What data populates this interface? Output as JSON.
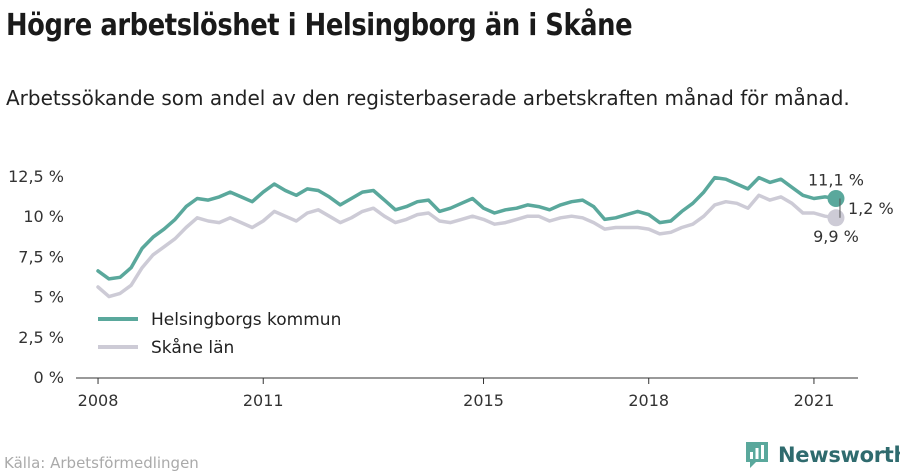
{
  "title": "Högre arbetslöshet i Helsingborg än i Skåne",
  "subtitle": "Arbetssökande som andel av den registerbaserade arbetskraften månad för månad.",
  "source": "Källa: Arbetsförmedlingen",
  "brand": {
    "name": "Newsworthy",
    "icon": "newsworthy-logo-icon",
    "color": "#2f6b6e"
  },
  "chart_data": {
    "type": "line",
    "x_tick_labels": [
      "2008",
      "2011",
      "2015",
      "2018",
      "2021"
    ],
    "y_tick_labels": [
      "0 %",
      "2,5 %",
      "5 %",
      "7,5 %",
      "10 %",
      "12,5 %"
    ],
    "ylim": [
      0,
      12.5
    ],
    "xlim": [
      2007.6,
      2021.8
    ],
    "grid": false,
    "legend_position": "bottom-left",
    "series": [
      {
        "name": "Helsingborgs kommun",
        "color": "#5aa89c",
        "end_label": "11,1 %",
        "x": [
          2008.0,
          2008.2,
          2008.4,
          2008.6,
          2008.8,
          2009.0,
          2009.2,
          2009.4,
          2009.6,
          2009.8,
          2010.0,
          2010.2,
          2010.4,
          2010.6,
          2010.8,
          2011.0,
          2011.2,
          2011.4,
          2011.6,
          2011.8,
          2012.0,
          2012.2,
          2012.4,
          2012.6,
          2012.8,
          2013.0,
          2013.2,
          2013.4,
          2013.6,
          2013.8,
          2014.0,
          2014.2,
          2014.4,
          2014.6,
          2014.8,
          2015.0,
          2015.2,
          2015.4,
          2015.6,
          2015.8,
          2016.0,
          2016.2,
          2016.4,
          2016.6,
          2016.8,
          2017.0,
          2017.2,
          2017.4,
          2017.6,
          2017.8,
          2018.0,
          2018.2,
          2018.4,
          2018.6,
          2018.8,
          2019.0,
          2019.2,
          2019.4,
          2019.6,
          2019.8,
          2020.0,
          2020.2,
          2020.4,
          2020.6,
          2020.8,
          2021.0,
          2021.2,
          2021.4
        ],
        "values": [
          6.6,
          6.1,
          6.2,
          6.8,
          8.0,
          8.7,
          9.2,
          9.8,
          10.6,
          11.1,
          11.0,
          11.2,
          11.5,
          11.2,
          10.9,
          11.5,
          12.0,
          11.6,
          11.3,
          11.7,
          11.6,
          11.2,
          10.7,
          11.1,
          11.5,
          11.6,
          11.0,
          10.4,
          10.6,
          10.9,
          11.0,
          10.3,
          10.5,
          10.8,
          11.1,
          10.5,
          10.2,
          10.4,
          10.5,
          10.7,
          10.6,
          10.4,
          10.7,
          10.9,
          11.0,
          10.6,
          9.8,
          9.9,
          10.1,
          10.3,
          10.1,
          9.6,
          9.7,
          10.3,
          10.8,
          11.5,
          12.4,
          12.3,
          12.0,
          11.7,
          12.4,
          12.1,
          12.3,
          11.8,
          11.3,
          11.1,
          11.2,
          11.1
        ]
      },
      {
        "name": "Skåne län",
        "color": "#cdcbd6",
        "end_label": "9,9 %",
        "x": [
          2008.0,
          2008.2,
          2008.4,
          2008.6,
          2008.8,
          2009.0,
          2009.2,
          2009.4,
          2009.6,
          2009.8,
          2010.0,
          2010.2,
          2010.4,
          2010.6,
          2010.8,
          2011.0,
          2011.2,
          2011.4,
          2011.6,
          2011.8,
          2012.0,
          2012.2,
          2012.4,
          2012.6,
          2012.8,
          2013.0,
          2013.2,
          2013.4,
          2013.6,
          2013.8,
          2014.0,
          2014.2,
          2014.4,
          2014.6,
          2014.8,
          2015.0,
          2015.2,
          2015.4,
          2015.6,
          2015.8,
          2016.0,
          2016.2,
          2016.4,
          2016.6,
          2016.8,
          2017.0,
          2017.2,
          2017.4,
          2017.6,
          2017.8,
          2018.0,
          2018.2,
          2018.4,
          2018.6,
          2018.8,
          2019.0,
          2019.2,
          2019.4,
          2019.6,
          2019.8,
          2020.0,
          2020.2,
          2020.4,
          2020.6,
          2020.8,
          2021.0,
          2021.2,
          2021.4
        ],
        "values": [
          5.6,
          5.0,
          5.2,
          5.7,
          6.8,
          7.6,
          8.1,
          8.6,
          9.3,
          9.9,
          9.7,
          9.6,
          9.9,
          9.6,
          9.3,
          9.7,
          10.3,
          10.0,
          9.7,
          10.2,
          10.4,
          10.0,
          9.6,
          9.9,
          10.3,
          10.5,
          10.0,
          9.6,
          9.8,
          10.1,
          10.2,
          9.7,
          9.6,
          9.8,
          10.0,
          9.8,
          9.5,
          9.6,
          9.8,
          10.0,
          10.0,
          9.7,
          9.9,
          10.0,
          9.9,
          9.6,
          9.2,
          9.3,
          9.3,
          9.3,
          9.2,
          8.9,
          9.0,
          9.3,
          9.5,
          10.0,
          10.7,
          10.9,
          10.8,
          10.5,
          11.3,
          11.0,
          11.2,
          10.8,
          10.2,
          10.2,
          10.0,
          9.9
        ]
      }
    ],
    "annotations": [
      {
        "text": "1,2 %",
        "position": "between series endpoints"
      }
    ]
  }
}
